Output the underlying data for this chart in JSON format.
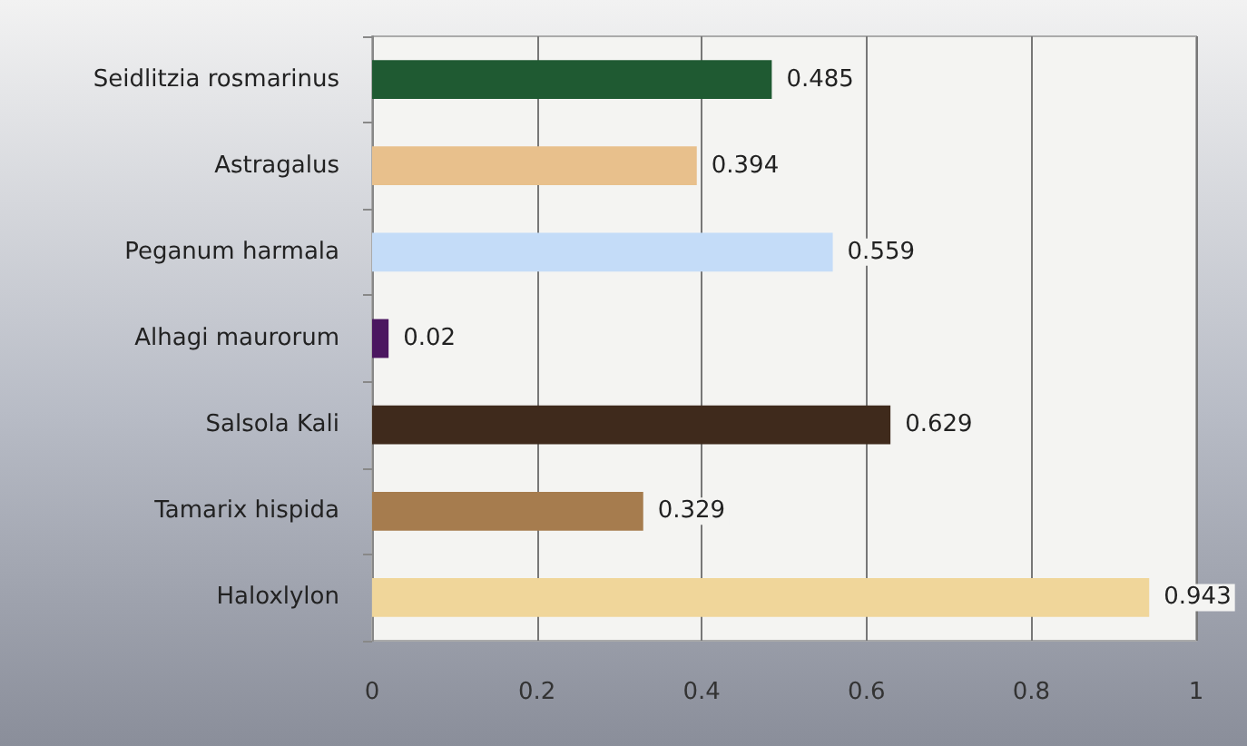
{
  "chart_data": {
    "type": "bar",
    "orientation": "horizontal",
    "categories": [
      "Seidlitzia rosmarinus",
      "Astragalus",
      "Peganum harmala",
      "Alhagi maurorum",
      "Salsola Kali",
      "Tamarix hispida",
      "Haloxlylon"
    ],
    "values": [
      0.485,
      0.394,
      0.559,
      0.02,
      0.629,
      0.329,
      0.943
    ],
    "colors": [
      "#1f5a32",
      "#e8c08c",
      "#c4dcf8",
      "#4b1660",
      "#3f2a1c",
      "#a67c4e",
      "#f0d69a"
    ],
    "xlim": [
      0,
      1
    ],
    "xticks": [
      0,
      0.2,
      0.4,
      0.6,
      0.8,
      1
    ],
    "grid": "x",
    "data_labels": true
  }
}
